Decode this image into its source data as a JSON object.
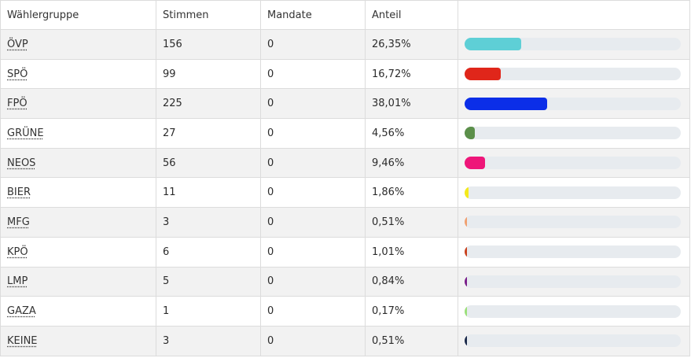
{
  "table": {
    "headers": {
      "group": "Wählergruppe",
      "votes": "Stimmen",
      "seats": "Mandate",
      "share": "Anteil",
      "bar": ""
    },
    "rows": [
      {
        "party": "ÖVP",
        "votes": "156",
        "seats": "0",
        "share": "26,35%",
        "share_value": 26.35,
        "color": "#5ecfd6"
      },
      {
        "party": "SPÖ",
        "votes": "99",
        "seats": "0",
        "share": "16,72%",
        "share_value": 16.72,
        "color": "#e0261a"
      },
      {
        "party": "FPÖ",
        "votes": "225",
        "seats": "0",
        "share": "38,01%",
        "share_value": 38.01,
        "color": "#0b2ee8"
      },
      {
        "party": "GRÜNE",
        "votes": "27",
        "seats": "0",
        "share": "4,56%",
        "share_value": 4.56,
        "color": "#5b8f4a"
      },
      {
        "party": "NEOS",
        "votes": "56",
        "seats": "0",
        "share": "9,46%",
        "share_value": 9.46,
        "color": "#ee1679"
      },
      {
        "party": "BIER",
        "votes": "11",
        "seats": "0",
        "share": "1,86%",
        "share_value": 1.86,
        "color": "#f4ea1c"
      },
      {
        "party": "MFG",
        "votes": "3",
        "seats": "0",
        "share": "0,51%",
        "share_value": 0.51,
        "color": "#f0a070"
      },
      {
        "party": "KPÖ",
        "votes": "6",
        "seats": "0",
        "share": "1,01%",
        "share_value": 1.01,
        "color": "#c9421e"
      },
      {
        "party": "LMP",
        "votes": "5",
        "seats": "0",
        "share": "0,84%",
        "share_value": 0.84,
        "color": "#7a1f8a"
      },
      {
        "party": "GAZA",
        "votes": "1",
        "seats": "0",
        "share": "0,17%",
        "share_value": 0.17,
        "color": "#9be07a"
      },
      {
        "party": "KEINE",
        "votes": "3",
        "seats": "0",
        "share": "0,51%",
        "share_value": 0.51,
        "color": "#1b2a4a"
      }
    ]
  }
}
